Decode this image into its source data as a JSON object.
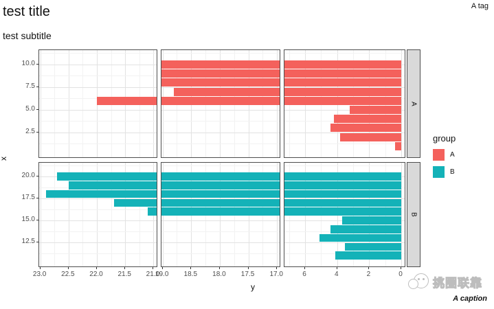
{
  "title": "test title",
  "subtitle": "test subtitle",
  "tag": "A tag",
  "caption": "A caption",
  "watermark_text": "挑圈联靠",
  "axes": {
    "x_title": "y",
    "y_title": "x"
  },
  "legend": {
    "title": "group",
    "items": [
      {
        "label": "A",
        "color": "#F4615C"
      },
      {
        "label": "B",
        "color": "#14B2B8"
      }
    ]
  },
  "chart_data": {
    "type": "bar",
    "orientation": "horizontal",
    "title": "test title",
    "subtitle": "test subtitle",
    "xlabel": "y",
    "ylabel": "x",
    "x_axis": "reversed with two breaks (approx 7-17 and 19-21), shown as three panels",
    "facets": [
      "A",
      "B"
    ],
    "grid": true,
    "legend_position": "right",
    "col_panels": [
      {
        "domain_left": 23.02,
        "domain_right": 20.92,
        "major_ticks": [
          23.0,
          22.5,
          22.0,
          21.5,
          21.0
        ],
        "tick_labels": [
          "23.0",
          "22.5",
          "22.0",
          "21.5",
          "21.0"
        ],
        "minor_ticks": [
          22.75,
          22.25,
          21.75,
          21.25
        ]
      },
      {
        "domain_left": 19.02,
        "domain_right": 16.93,
        "major_ticks": [
          19.0,
          18.5,
          18.0,
          17.5,
          17.0
        ],
        "tick_labels": [
          "19.0",
          "18.5",
          "18.0",
          "17.5",
          "17.0"
        ],
        "minor_ticks": [
          18.75,
          18.25,
          17.75,
          17.25
        ]
      },
      {
        "domain_left": 7.29,
        "domain_right": -0.3,
        "major_ticks": [
          6,
          4,
          2,
          0
        ],
        "tick_labels": [
          "6",
          "4",
          "2",
          "0"
        ],
        "minor_ticks": [
          7,
          5,
          3,
          1
        ]
      }
    ],
    "row_panels": [
      {
        "facet": "A",
        "domain_top": 11.59,
        "domain_bottom": -0.38,
        "major_ticks": [
          10.0,
          7.5,
          5.0,
          2.5
        ],
        "tick_labels": [
          "10.0",
          "7.5",
          "5.0",
          "2.5"
        ],
        "minor_ticks": [
          11.25,
          8.75,
          6.25,
          3.75,
          1.25
        ]
      },
      {
        "facet": "B",
        "domain_top": 21.56,
        "domain_bottom": 9.61,
        "major_ticks": [
          20.0,
          17.5,
          15.0,
          12.5
        ],
        "tick_labels": [
          "20.0",
          "17.5",
          "15.0",
          "12.5"
        ],
        "minor_ticks": [
          21.25,
          18.75,
          16.25,
          13.75,
          11.25
        ]
      }
    ],
    "bar_width_data_units": 0.9,
    "series": [
      {
        "name": "A",
        "color": "#F4615C",
        "bars": [
          {
            "x": 1,
            "y": 0.4
          },
          {
            "x": 2,
            "y": 3.8
          },
          {
            "x": 3,
            "y": 4.4
          },
          {
            "x": 4,
            "y": 4.2
          },
          {
            "x": 5,
            "y": 3.2
          },
          {
            "x": 6,
            "y": 22.0
          },
          {
            "x": 7,
            "y": 18.8
          },
          {
            "x": 8,
            "y": 19.6
          },
          {
            "x": 9,
            "y": 20.3
          },
          {
            "x": 10,
            "y": 19.9
          }
        ]
      },
      {
        "name": "B",
        "color": "#14B2B8",
        "bars": [
          {
            "x": 11,
            "y": 4.1
          },
          {
            "x": 12,
            "y": 3.5
          },
          {
            "x": 13,
            "y": 5.1
          },
          {
            "x": 14,
            "y": 4.4
          },
          {
            "x": 15,
            "y": 3.7
          },
          {
            "x": 16,
            "y": 21.1
          },
          {
            "x": 17,
            "y": 21.7
          },
          {
            "x": 18,
            "y": 22.9
          },
          {
            "x": 19,
            "y": 22.5
          },
          {
            "x": 20,
            "y": 22.7
          }
        ]
      }
    ]
  }
}
